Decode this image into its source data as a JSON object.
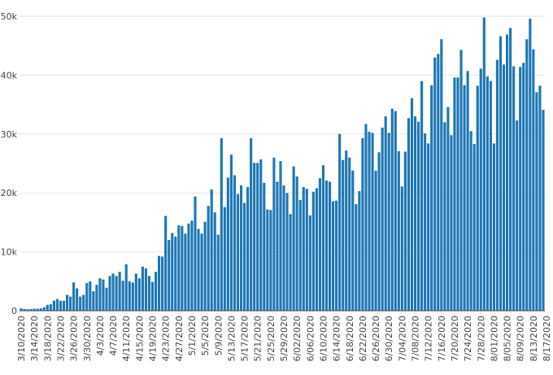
{
  "chart_data": {
    "type": "bar",
    "title": "",
    "xlabel": "",
    "ylabel": "",
    "ylim": [
      0,
      50000
    ],
    "grid": true,
    "bar_color": "#1f77b4",
    "y_ticks": [
      0,
      10000,
      20000,
      30000,
      40000,
      50000
    ],
    "y_tick_labels": [
      "0",
      "10k",
      "20k",
      "30k",
      "40k",
      "50k"
    ],
    "x_tick_labels": [
      "3/10/2020",
      "3/14/2020",
      "3/18/2020",
      "3/22/2020",
      "3/26/2020",
      "3/30/2020",
      "4/3/2020",
      "4/7/2020",
      "4/11/2020",
      "4/15/2020",
      "4/19/2020",
      "4/23/2020",
      "4/27/2020",
      "5/1/2020",
      "5/5/2020",
      "5/9/2020",
      "5/13/2020",
      "5/17/2020",
      "5/21/2020",
      "5/25/2020",
      "5/29/2020",
      "6/02/2020",
      "6/06/2020",
      "6/10/2020",
      "6/14/2020",
      "6/18/2020",
      "6/22/2020",
      "6/26/2020",
      "6/30/2020",
      "7/04/2020",
      "7/08/2020",
      "7/12/2020",
      "7/16/2020",
      "7/20/2020",
      "7/24/2020",
      "7/28/2020",
      "8/01/2020",
      "8/05/2020",
      "8/09/2020",
      "8/13/2020",
      "8/17/2020"
    ],
    "start_label": "3/10/2020",
    "values": [
      400,
      300,
      250,
      300,
      350,
      350,
      400,
      600,
      1000,
      1100,
      1700,
      2000,
      1700,
      1700,
      2700,
      2400,
      4800,
      3800,
      2400,
      2700,
      4700,
      5000,
      3300,
      4400,
      5500,
      5300,
      3900,
      5900,
      6300,
      5900,
      6600,
      5100,
      7900,
      5000,
      4800,
      6300,
      5500,
      7500,
      7200,
      5900,
      4900,
      6600,
      9300,
      9200,
      16100,
      12000,
      13200,
      12600,
      14500,
      14400,
      13100,
      14800,
      15300,
      19400,
      13900,
      13100,
      15100,
      17800,
      20600,
      16700,
      12900,
      29300,
      17600,
      22600,
      26500,
      23000,
      19800,
      21300,
      18300,
      21000,
      29300,
      25100,
      25100,
      25700,
      21700,
      17200,
      17100,
      26000,
      21900,
      25400,
      21300,
      20000,
      16400,
      24500,
      22800,
      18800,
      21000,
      20700,
      16200,
      20200,
      20800,
      22500,
      24700,
      22100,
      21900,
      18600,
      18700,
      30000,
      25600,
      27200,
      26000,
      23800,
      18100,
      20300,
      29300,
      31700,
      30400,
      30200,
      23800,
      26900,
      31100,
      33000,
      30200,
      34300,
      33900,
      27100,
      21100,
      27000,
      32700,
      36100,
      33000,
      32100,
      39000,
      30100,
      28400,
      38300,
      43000,
      43600,
      46100,
      32000,
      34600,
      29800,
      39600,
      39600,
      44300,
      38300,
      40700,
      30500,
      28300,
      38200,
      41100,
      49800,
      39800,
      39000,
      28400,
      42600,
      46600,
      41800,
      46900,
      48000,
      41500,
      32300,
      41400,
      42100,
      46100,
      49600,
      44400,
      37100,
      38200,
      34100
    ]
  }
}
